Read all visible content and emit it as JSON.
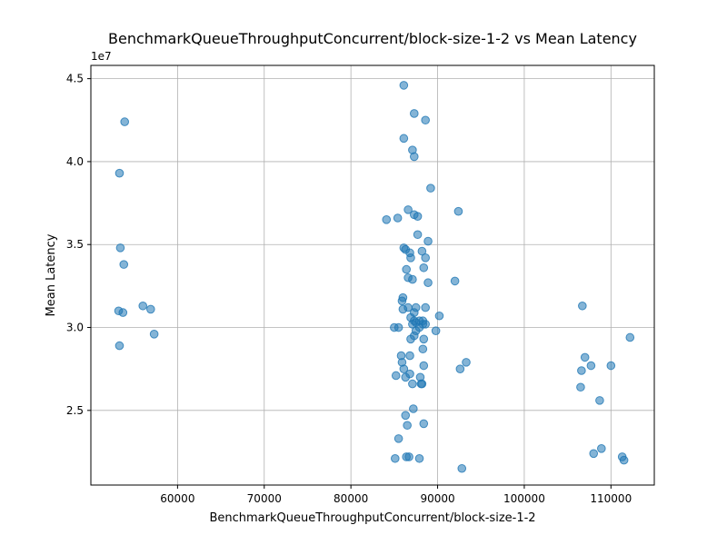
{
  "chart_data": {
    "type": "scatter",
    "title": "BenchmarkQueueThroughputConcurrent/block-size-1-2 vs Mean Latency",
    "xlabel": "BenchmarkQueueThroughputConcurrent/block-size-1-2",
    "ylabel": "Mean Latency",
    "y_offset_label": "1e7",
    "xlim": [
      50000,
      115000
    ],
    "ylim": [
      20500000,
      45800000
    ],
    "xticks": [
      60000,
      70000,
      80000,
      90000,
      100000,
      110000
    ],
    "xtick_labels": [
      "60000",
      "70000",
      "80000",
      "90000",
      "100000",
      "110000"
    ],
    "yticks": [
      25000000,
      30000000,
      35000000,
      40000000,
      45000000
    ],
    "ytick_labels": [
      "2.5",
      "3.0",
      "3.5",
      "4.0",
      "4.5"
    ],
    "grid": true,
    "color": "#1f77b4",
    "points": [
      [
        53900,
        42400000
      ],
      [
        53300,
        39300000
      ],
      [
        53400,
        34800000
      ],
      [
        53800,
        33800000
      ],
      [
        53200,
        31000000
      ],
      [
        53700,
        30900000
      ],
      [
        53300,
        28900000
      ],
      [
        56000,
        31300000
      ],
      [
        56900,
        31100000
      ],
      [
        57300,
        29600000
      ],
      [
        86100,
        44600000
      ],
      [
        87300,
        42900000
      ],
      [
        88600,
        42500000
      ],
      [
        86100,
        41400000
      ],
      [
        87100,
        40700000
      ],
      [
        87300,
        40300000
      ],
      [
        89200,
        38400000
      ],
      [
        92400,
        37000000
      ],
      [
        86600,
        37100000
      ],
      [
        87300,
        36800000
      ],
      [
        87700,
        36700000
      ],
      [
        85400,
        36600000
      ],
      [
        84100,
        36500000
      ],
      [
        87700,
        35600000
      ],
      [
        88900,
        35200000
      ],
      [
        86100,
        34800000
      ],
      [
        86300,
        34700000
      ],
      [
        86800,
        34500000
      ],
      [
        88200,
        34600000
      ],
      [
        86900,
        34200000
      ],
      [
        88600,
        34200000
      ],
      [
        86400,
        33500000
      ],
      [
        88400,
        33600000
      ],
      [
        86600,
        33000000
      ],
      [
        87100,
        32900000
      ],
      [
        88900,
        32700000
      ],
      [
        92000,
        32800000
      ],
      [
        86000,
        31800000
      ],
      [
        85900,
        31600000
      ],
      [
        86000,
        31100000
      ],
      [
        86600,
        31200000
      ],
      [
        87500,
        31200000
      ],
      [
        88600,
        31200000
      ],
      [
        87300,
        30900000
      ],
      [
        86900,
        30600000
      ],
      [
        87300,
        30400000
      ],
      [
        87900,
        30400000
      ],
      [
        88300,
        30400000
      ],
      [
        90200,
        30700000
      ],
      [
        85000,
        30000000
      ],
      [
        85500,
        30000000
      ],
      [
        87100,
        30200000
      ],
      [
        87500,
        30300000
      ],
      [
        88300,
        30200000
      ],
      [
        88600,
        30200000
      ],
      [
        87900,
        30000000
      ],
      [
        87500,
        29800000
      ],
      [
        87300,
        29500000
      ],
      [
        86900,
        29300000
      ],
      [
        88400,
        29300000
      ],
      [
        89800,
        29800000
      ],
      [
        88300,
        28700000
      ],
      [
        85800,
        28300000
      ],
      [
        86800,
        28300000
      ],
      [
        93300,
        27900000
      ],
      [
        85900,
        27900000
      ],
      [
        88400,
        27700000
      ],
      [
        86100,
        27500000
      ],
      [
        92600,
        27500000
      ],
      [
        85200,
        27100000
      ],
      [
        86300,
        27000000
      ],
      [
        86800,
        27200000
      ],
      [
        88000,
        27000000
      ],
      [
        87100,
        26600000
      ],
      [
        88100,
        26600000
      ],
      [
        88200,
        26600000
      ],
      [
        87200,
        25100000
      ],
      [
        86300,
        24700000
      ],
      [
        86500,
        24100000
      ],
      [
        88400,
        24200000
      ],
      [
        85500,
        23300000
      ],
      [
        86400,
        22200000
      ],
      [
        86700,
        22200000
      ],
      [
        85100,
        22100000
      ],
      [
        87900,
        22100000
      ],
      [
        92800,
        21500000
      ],
      [
        106700,
        31300000
      ],
      [
        112200,
        29400000
      ],
      [
        107000,
        28200000
      ],
      [
        107700,
        27700000
      ],
      [
        110000,
        27700000
      ],
      [
        106600,
        27400000
      ],
      [
        106500,
        26400000
      ],
      [
        108700,
        25600000
      ],
      [
        108900,
        22700000
      ],
      [
        108000,
        22400000
      ],
      [
        111300,
        22200000
      ],
      [
        111500,
        22000000
      ]
    ]
  }
}
